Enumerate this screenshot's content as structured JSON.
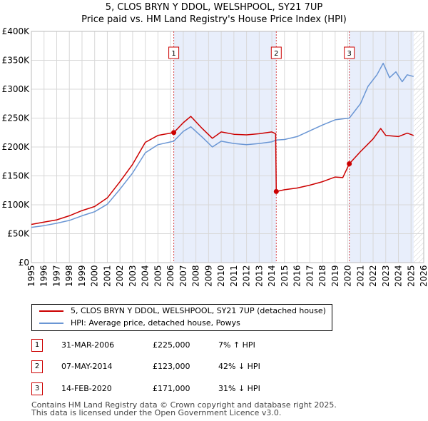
{
  "header": {
    "title_line1": "5, CLOS BRYN Y DDOL, WELSHPOOL, SY21 7UP",
    "title_line2": "Price paid vs. HM Land Registry's House Price Index (HPI)"
  },
  "chart_data": {
    "type": "line",
    "x_range": [
      1995,
      2026
    ],
    "ylim": [
      0,
      400000
    ],
    "y_ticks": [
      0,
      50000,
      100000,
      150000,
      200000,
      250000,
      300000,
      350000,
      400000
    ],
    "y_tick_labels": [
      "£0",
      "£50K",
      "£100K",
      "£150K",
      "£200K",
      "£250K",
      "£300K",
      "£350K",
      "£400K"
    ],
    "x_tick_labels": [
      "1995",
      "1996",
      "1997",
      "1998",
      "1999",
      "2000",
      "2001",
      "2002",
      "2003",
      "2004",
      "2005",
      "2006",
      "2007",
      "2008",
      "2009",
      "2010",
      "2011",
      "2012",
      "2013",
      "2014",
      "2015",
      "2016",
      "2017",
      "2018",
      "2019",
      "2020",
      "2021",
      "2022",
      "2023",
      "2024",
      "2025",
      "2026"
    ],
    "data_end_year": 2025.2,
    "shaded_periods": [
      [
        2006.25,
        2014.35
      ],
      [
        2020.12,
        2025.2
      ]
    ],
    "series": [
      {
        "name": "5, CLOS BRYN Y DDOL, WELSHPOOL, SY21 7UP (detached house)",
        "color": "#cc0000",
        "points": [
          [
            1995.0,
            66000
          ],
          [
            1996.0,
            70000
          ],
          [
            1997.0,
            74000
          ],
          [
            1998.0,
            81000
          ],
          [
            1999.0,
            90000
          ],
          [
            2000.0,
            97000
          ],
          [
            2001.0,
            112000
          ],
          [
            2002.0,
            140000
          ],
          [
            2003.0,
            170000
          ],
          [
            2004.0,
            208000
          ],
          [
            2005.0,
            220000
          ],
          [
            2006.25,
            225000
          ],
          [
            2007.0,
            242000
          ],
          [
            2007.6,
            253000
          ],
          [
            2008.5,
            232000
          ],
          [
            2009.3,
            215000
          ],
          [
            2010.0,
            226000
          ],
          [
            2011.0,
            222000
          ],
          [
            2012.0,
            221000
          ],
          [
            2013.0,
            223000
          ],
          [
            2014.0,
            226000
          ],
          [
            2014.3,
            223000
          ],
          [
            2014.35,
            123000
          ],
          [
            2015.0,
            126000
          ],
          [
            2016.0,
            129000
          ],
          [
            2017.0,
            134000
          ],
          [
            2018.0,
            140000
          ],
          [
            2019.0,
            148000
          ],
          [
            2019.6,
            147000
          ],
          [
            2020.12,
            171000
          ],
          [
            2021.0,
            192000
          ],
          [
            2022.0,
            214000
          ],
          [
            2022.6,
            232000
          ],
          [
            2023.0,
            220000
          ],
          [
            2024.0,
            218000
          ],
          [
            2024.7,
            224000
          ],
          [
            2025.2,
            220000
          ]
        ]
      },
      {
        "name": "HPI: Average price, detached house, Powys",
        "color": "#6a96d4",
        "points": [
          [
            1995.0,
            61000
          ],
          [
            1996.0,
            64000
          ],
          [
            1997.0,
            68000
          ],
          [
            1998.0,
            73000
          ],
          [
            1999.0,
            81000
          ],
          [
            2000.0,
            88000
          ],
          [
            2001.0,
            101000
          ],
          [
            2002.0,
            127000
          ],
          [
            2003.0,
            155000
          ],
          [
            2004.0,
            190000
          ],
          [
            2005.0,
            204000
          ],
          [
            2006.25,
            210000
          ],
          [
            2007.0,
            227000
          ],
          [
            2007.6,
            235000
          ],
          [
            2008.5,
            217000
          ],
          [
            2009.3,
            200000
          ],
          [
            2010.0,
            210000
          ],
          [
            2011.0,
            206000
          ],
          [
            2012.0,
            204000
          ],
          [
            2013.0,
            206000
          ],
          [
            2014.0,
            209000
          ],
          [
            2014.35,
            212000
          ],
          [
            2015.0,
            213000
          ],
          [
            2016.0,
            218000
          ],
          [
            2017.0,
            228000
          ],
          [
            2018.0,
            238000
          ],
          [
            2019.0,
            247000
          ],
          [
            2020.12,
            250000
          ],
          [
            2021.0,
            275000
          ],
          [
            2021.6,
            305000
          ],
          [
            2022.3,
            325000
          ],
          [
            2022.8,
            345000
          ],
          [
            2023.3,
            320000
          ],
          [
            2023.8,
            330000
          ],
          [
            2024.3,
            313000
          ],
          [
            2024.7,
            325000
          ],
          [
            2025.2,
            322000
          ]
        ]
      }
    ],
    "markers": [
      {
        "label": "1",
        "x": 2006.25,
        "y": 225000
      },
      {
        "label": "2",
        "x": 2014.35,
        "y": 123000
      },
      {
        "label": "3",
        "x": 2020.12,
        "y": 171000
      }
    ]
  },
  "legend": {
    "red_label": "5, CLOS BRYN Y DDOL, WELSHPOOL, SY21 7UP (detached house)",
    "blue_label": "HPI: Average price, detached house, Powys"
  },
  "transactions": [
    {
      "num": "1",
      "date": "31-MAR-2006",
      "price": "£225,000",
      "hpi": "7% ↑ HPI"
    },
    {
      "num": "2",
      "date": "07-MAY-2014",
      "price": "£123,000",
      "hpi": "42% ↓ HPI"
    },
    {
      "num": "3",
      "date": "14-FEB-2020",
      "price": "£171,000",
      "hpi": "31% ↓ HPI"
    }
  ],
  "footer": {
    "line1": "Contains HM Land Registry data © Crown copyright and database right 2025.",
    "line2": "This data is licensed under the Open Government Licence v3.0."
  },
  "colors": {
    "red": "#cc0000",
    "blue": "#6a96d4",
    "shade": "#e8eefb",
    "grid": "#d8d8d8"
  }
}
